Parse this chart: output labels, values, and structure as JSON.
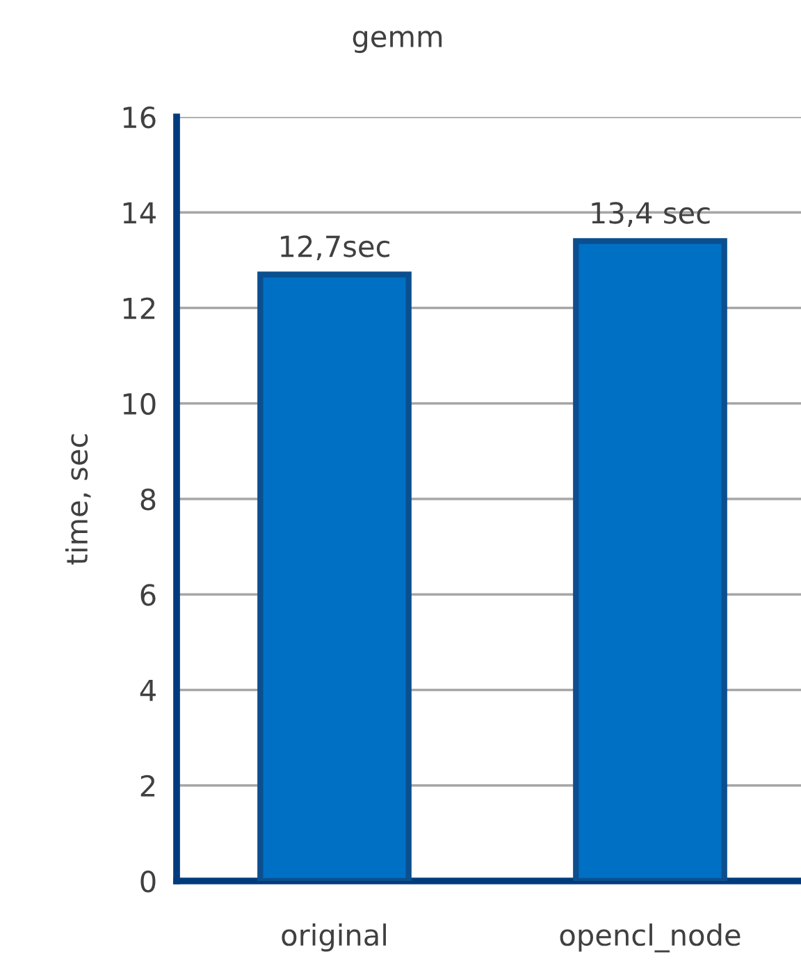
{
  "chart_data": {
    "type": "bar",
    "title": "gemm",
    "ylabel": "time, sec",
    "categories": [
      "original",
      "opencl_node"
    ],
    "values": [
      12.7,
      13.4
    ],
    "color": "#0070c5",
    "value_labels": [
      "12,7sec",
      "13,4 sec"
    ],
    "ylim": [
      0,
      16
    ],
    "yticks": [
      0,
      2,
      4,
      6,
      8,
      10,
      12,
      14,
      16
    ],
    "grid": "y",
    "legend": false
  }
}
